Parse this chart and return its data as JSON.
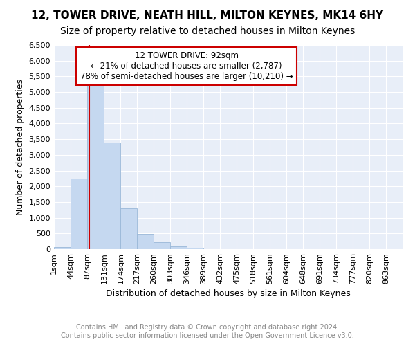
{
  "title": "12, TOWER DRIVE, NEATH HILL, MILTON KEYNES, MK14 6HY",
  "subtitle": "Size of property relative to detached houses in Milton Keynes",
  "xlabel": "Distribution of detached houses by size in Milton Keynes",
  "ylabel": "Number of detached properties",
  "bin_edges": [
    1,
    44,
    87,
    131,
    174,
    217,
    260,
    303,
    346,
    389,
    432,
    475,
    518,
    561,
    604,
    648,
    691,
    734,
    777,
    820,
    863
  ],
  "bin_labels": [
    "1sqm",
    "44sqm",
    "87sqm",
    "131sqm",
    "174sqm",
    "217sqm",
    "260sqm",
    "303sqm",
    "346sqm",
    "389sqm",
    "432sqm",
    "475sqm",
    "518sqm",
    "561sqm",
    "604sqm",
    "648sqm",
    "691sqm",
    "734sqm",
    "777sqm",
    "820sqm",
    "863sqm"
  ],
  "bar_heights": [
    75,
    2250,
    5450,
    3400,
    1300,
    475,
    210,
    90,
    50,
    0,
    0,
    0,
    0,
    0,
    0,
    0,
    0,
    0,
    0,
    0
  ],
  "bar_color": "#c5d8f0",
  "bar_edge_color": "#9ab8d8",
  "property_size": 92,
  "property_line_color": "#cc0000",
  "annotation_line1": "12 TOWER DRIVE: 92sqm",
  "annotation_line2": "← 21% of detached houses are smaller (2,787)",
  "annotation_line3": "78% of semi-detached houses are larger (10,210) →",
  "annotation_box_color": "#cc0000",
  "ylim": [
    0,
    6500
  ],
  "yticks": [
    0,
    500,
    1000,
    1500,
    2000,
    2500,
    3000,
    3500,
    4000,
    4500,
    5000,
    5500,
    6000,
    6500
  ],
  "background_color": "#e8eef8",
  "grid_color": "#ffffff",
  "footer_text": "Contains HM Land Registry data © Crown copyright and database right 2024.\nContains public sector information licensed under the Open Government Licence v3.0.",
  "title_fontsize": 11,
  "subtitle_fontsize": 10,
  "axis_label_fontsize": 9,
  "tick_fontsize": 8,
  "annotation_fontsize": 8.5,
  "footer_fontsize": 7
}
